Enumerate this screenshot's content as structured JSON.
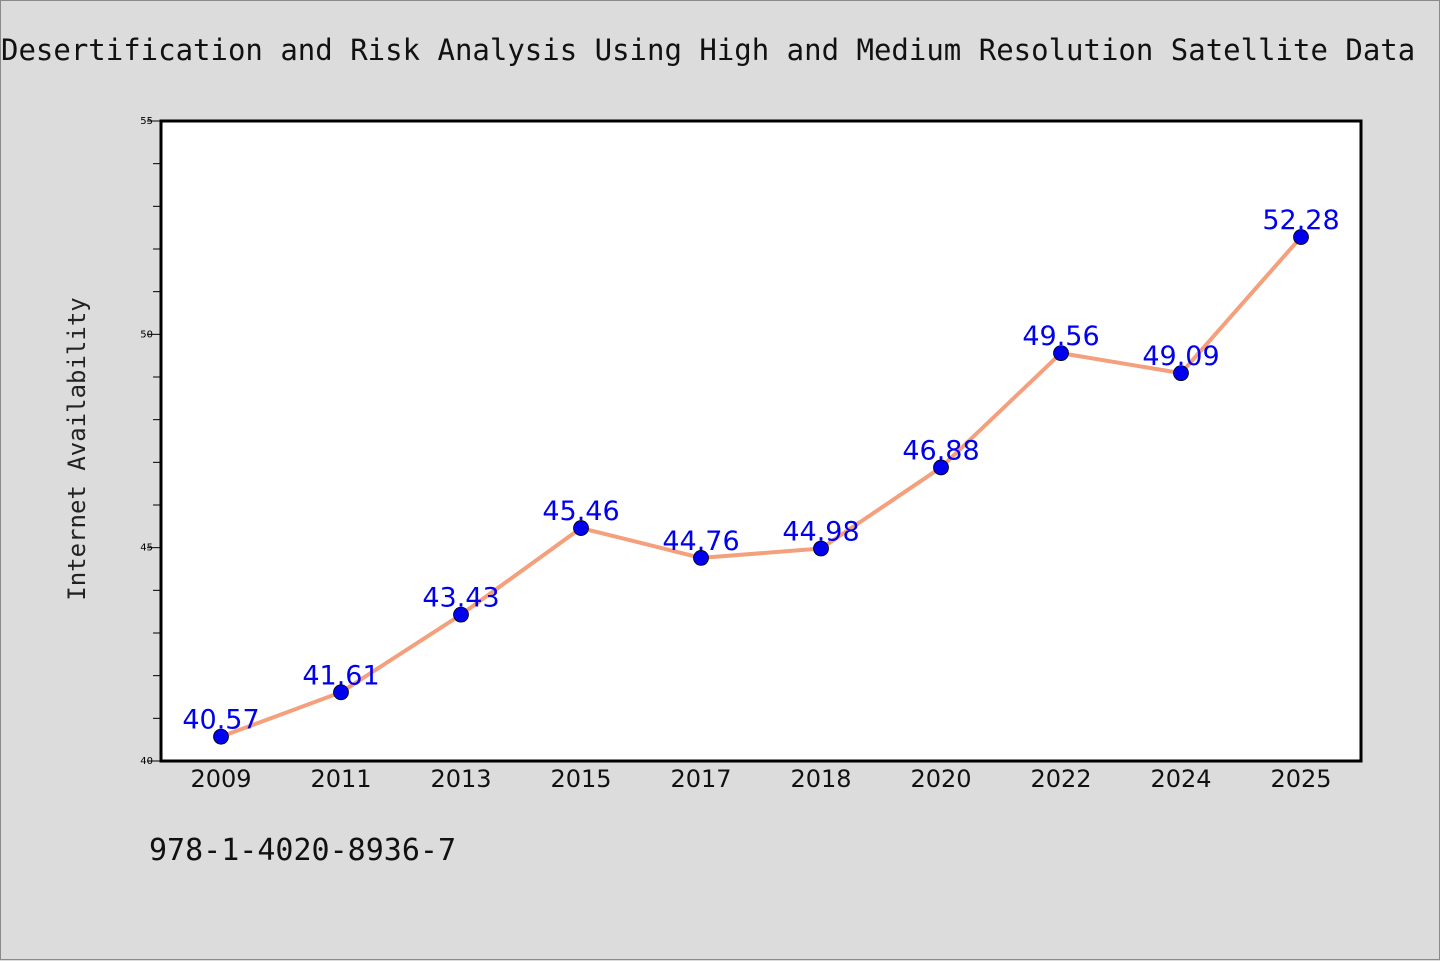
{
  "chart_data": {
    "type": "line",
    "title": "Desertification and Risk Analysis Using High and Medium Resolution Satellite Data",
    "xlabel": "",
    "ylabel": "Internet Availability",
    "categories": [
      "2009",
      "2011",
      "2013",
      "2015",
      "2017",
      "2018",
      "2020",
      "2022",
      "2024",
      "2025"
    ],
    "series": [
      {
        "values": [
          40.57,
          41.61,
          43.43,
          45.46,
          44.76,
          44.98,
          46.88,
          49.56,
          49.09,
          52.28
        ],
        "data_labels": [
          "40.57",
          "41.61",
          "43.43",
          "45.46",
          "44.76",
          "44.98",
          "46.88",
          "49.56",
          "49.09",
          "52.28"
        ],
        "line_color": "#f4a07c",
        "marker_color": "#0000ee"
      }
    ],
    "ylim": [
      40,
      55
    ],
    "yticks": [
      "40",
      "45",
      "50",
      "55"
    ],
    "grid": false,
    "label_color": "#0000ee"
  },
  "note": "978-1-4020-8936-7"
}
